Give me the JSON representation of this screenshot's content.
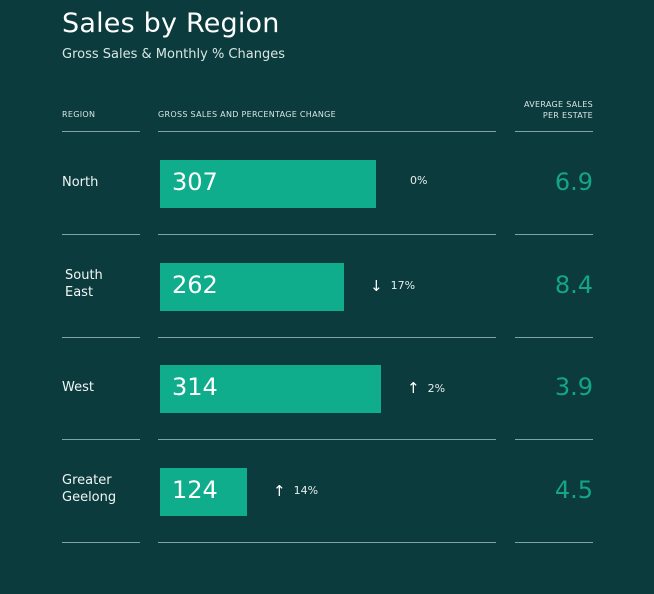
{
  "title": "Sales by Region",
  "subtitle": "Gross Sales & Monthly % Changes",
  "headers": {
    "region": "REGION",
    "gross": "GROSS SALES AND PERCENTAGE CHANGE",
    "avg_line1": "AVERAGE SALES",
    "avg_line2": "PER ESTATE"
  },
  "colors": {
    "background": "#0b3b3d",
    "bar": "#10ad8c",
    "avg_text": "#14a585"
  },
  "chart_data": {
    "type": "bar",
    "title": "Sales by Region",
    "subtitle": "Gross Sales & Monthly % Changes",
    "orientation": "horizontal",
    "categories": [
      "North",
      "South East",
      "West",
      "Greater Geelong"
    ],
    "category_lines": [
      [
        "North"
      ],
      [
        "South",
        "East"
      ],
      [
        "West"
      ],
      [
        "Greater",
        "Geelong"
      ]
    ],
    "values": [
      307,
      262,
      314,
      124
    ],
    "changes": [
      {
        "direction": "none",
        "text": "0%"
      },
      {
        "direction": "down",
        "text": "17%"
      },
      {
        "direction": "up",
        "text": "2%"
      },
      {
        "direction": "up",
        "text": "14%"
      }
    ],
    "avg_sales_per_estate": [
      "6.9",
      "8.4",
      "3.9",
      "4.5"
    ],
    "xlim": [
      0,
      314
    ]
  }
}
